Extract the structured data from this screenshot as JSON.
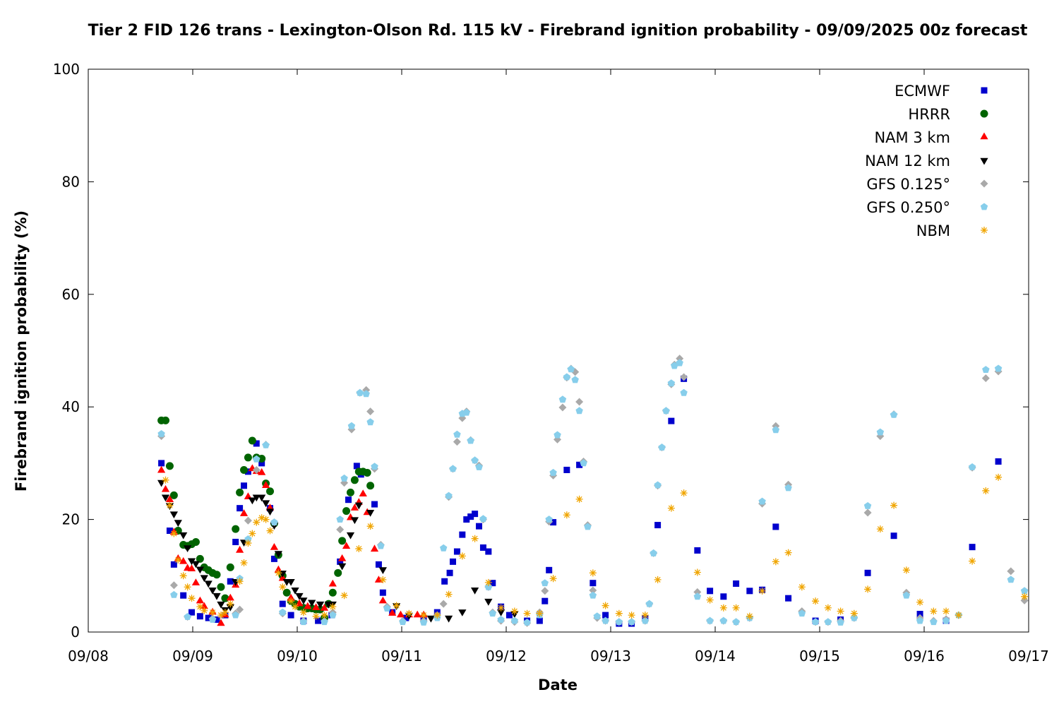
{
  "chart_data": {
    "type": "scatter",
    "title": "Tier 2 FID 126 trans - Lexington-Olson Rd. 115 kV - Firebrand ignition probability - 09/09/2025 00z forecast",
    "x_label": "Date",
    "y_label": "Firebrand ignition probability (%)",
    "xlim": [
      0,
      9
    ],
    "xticks": [
      {
        "value": 0,
        "label": "09/08"
      },
      {
        "value": 1,
        "label": "09/09"
      },
      {
        "value": 2,
        "label": "09/10"
      },
      {
        "value": 3,
        "label": "09/11"
      },
      {
        "value": 4,
        "label": "09/12"
      },
      {
        "value": 5,
        "label": "09/13"
      },
      {
        "value": 6,
        "label": "09/14"
      },
      {
        "value": 7,
        "label": "09/15"
      },
      {
        "value": 8,
        "label": "09/16"
      },
      {
        "value": 9,
        "label": "09/17"
      }
    ],
    "ylim": [
      0,
      100
    ],
    "yticks": [
      0,
      20,
      40,
      60,
      80,
      100
    ],
    "grid": false,
    "legend": "upper right",
    "series": [
      {
        "name": "ECMWF",
        "color": "#0000cd",
        "marker": "square",
        "x": [
          0.7,
          0.78,
          0.82,
          0.91,
          0.99,
          1.07,
          1.15,
          1.23,
          1.31,
          1.36,
          1.41,
          1.45,
          1.49,
          1.53,
          1.61,
          1.66,
          1.74,
          1.78,
          1.86,
          1.94,
          2.06,
          2.2,
          2.33,
          2.41,
          2.49,
          2.57,
          2.61,
          2.74,
          2.78,
          2.82,
          2.91,
          3.04,
          3.21,
          3.34,
          3.41,
          3.46,
          3.49,
          3.53,
          3.58,
          3.62,
          3.66,
          3.7,
          3.74,
          3.78,
          3.83,
          3.87,
          3.95,
          4.03,
          4.2,
          4.32,
          4.37,
          4.41,
          4.45,
          4.58,
          4.7,
          4.83,
          4.95,
          5.08,
          5.2,
          5.33,
          5.45,
          5.58,
          5.7,
          5.83,
          5.95,
          6.08,
          6.2,
          6.33,
          6.45,
          6.58,
          6.7,
          6.96,
          7.2,
          7.46,
          7.71,
          7.96,
          8.21,
          8.46,
          8.71
        ],
        "values": [
          30,
          18,
          12,
          6.5,
          3.5,
          2.8,
          2.5,
          2.2,
          3,
          9,
          16,
          22,
          26,
          28.5,
          33.5,
          30,
          22,
          13,
          5,
          3,
          2,
          2,
          3,
          12.5,
          23.5,
          29.5,
          28,
          22.7,
          12,
          7,
          3.5,
          2.5,
          2.5,
          3.5,
          9,
          10.5,
          12.5,
          14.3,
          17.3,
          20,
          20.5,
          21,
          18.8,
          15,
          14.3,
          8.7,
          4.5,
          3,
          2,
          2,
          5.5,
          11,
          19.5,
          28.8,
          29.7,
          8.7,
          3,
          1.5,
          1.5,
          2.5,
          19,
          37.5,
          45,
          14.5,
          7.3,
          6.3,
          8.6,
          7.3,
          7.5,
          18.7,
          6,
          2,
          2.2,
          10.5,
          17.1,
          3.2,
          2,
          15.1,
          30.3
        ]
      },
      {
        "name": "HRRR",
        "color": "#006400",
        "marker": "circle",
        "x": [
          0.7,
          0.74,
          0.78,
          0.82,
          0.86,
          0.91,
          0.95,
          0.99,
          1.03,
          1.07,
          1.11,
          1.15,
          1.19,
          1.23,
          1.27,
          1.31,
          1.36,
          1.41,
          1.45,
          1.49,
          1.53,
          1.57,
          1.61,
          1.66,
          1.7,
          1.74,
          1.78,
          1.82,
          1.86,
          1.9,
          1.94,
          1.98,
          2.02,
          2.06,
          2.1,
          2.14,
          2.18,
          2.22,
          2.26,
          2.3,
          2.34,
          2.39,
          2.43,
          2.47,
          2.51,
          2.55,
          2.59,
          2.63,
          2.67,
          2.7
        ],
        "values": [
          37.6,
          37.6,
          29.5,
          24.3,
          18,
          15.5,
          15.3,
          15.6,
          16,
          13,
          11.5,
          11,
          10.5,
          10.2,
          8,
          6,
          11.5,
          18.3,
          24.8,
          28.8,
          31,
          34,
          31,
          30.8,
          26.4,
          25,
          19.3,
          13.7,
          10,
          7,
          5.5,
          5,
          4.5,
          4.3,
          4.2,
          4.2,
          4,
          4,
          2.5,
          5,
          7,
          10.5,
          16.2,
          21.5,
          24.8,
          27,
          28.5,
          28.5,
          28.3,
          26
        ]
      },
      {
        "name": "NAM 3 km",
        "color": "#ff0000",
        "marker": "triangle-up",
        "x": [
          0.7,
          0.74,
          0.78,
          0.82,
          0.86,
          0.91,
          0.95,
          0.99,
          1.03,
          1.07,
          1.11,
          1.19,
          1.27,
          1.31,
          1.36,
          1.41,
          1.45,
          1.49,
          1.53,
          1.57,
          1.61,
          1.66,
          1.7,
          1.74,
          1.78,
          1.82,
          1.86,
          1.94,
          2.02,
          2.1,
          2.18,
          2.26,
          2.34,
          2.43,
          2.47,
          2.51,
          2.55,
          2.59,
          2.63,
          2.67,
          2.74,
          2.78,
          2.82,
          2.91,
          2.99,
          3.07,
          3.15,
          3.21
        ],
        "values": [
          28.7,
          25.3,
          23.5,
          17.7,
          13,
          12.5,
          11.3,
          11.2,
          8.7,
          5.5,
          4.5,
          3.5,
          1.5,
          3,
          6,
          8.3,
          14.5,
          21,
          24,
          29,
          28.5,
          28.3,
          26,
          22,
          15,
          11,
          9.5,
          6,
          5,
          4.5,
          4.3,
          4.2,
          8.5,
          13,
          15.2,
          20.3,
          22,
          23,
          24.5,
          21.2,
          14.7,
          9.2,
          5.5,
          3.3,
          3,
          3,
          3,
          3
        ]
      },
      {
        "name": "NAM 12 km",
        "color": "#000000",
        "marker": "triangle-down",
        "x": [
          0.7,
          0.74,
          0.78,
          0.82,
          0.86,
          0.91,
          0.95,
          0.99,
          1.03,
          1.07,
          1.11,
          1.15,
          1.19,
          1.23,
          1.27,
          1.31,
          1.36,
          1.41,
          1.49,
          1.57,
          1.61,
          1.66,
          1.7,
          1.74,
          1.78,
          1.82,
          1.86,
          1.9,
          1.94,
          1.98,
          2.02,
          2.06,
          2.14,
          2.22,
          2.3,
          2.34,
          2.43,
          2.51,
          2.55,
          2.59,
          2.7,
          2.82,
          2.95,
          3.07,
          3.28,
          3.45,
          3.58,
          3.7,
          3.83,
          3.95,
          4.08
        ],
        "values": [
          26.6,
          24,
          22.5,
          21,
          19.5,
          17.3,
          15,
          12.7,
          12.2,
          11.2,
          9.7,
          8.7,
          7.5,
          6.5,
          5,
          4,
          4.5,
          9,
          16,
          23.5,
          24,
          24,
          23,
          21.5,
          19,
          14,
          10.5,
          9,
          9,
          7.5,
          6.5,
          5.7,
          5.3,
          5,
          5,
          5,
          11.8,
          17.3,
          20,
          22.6,
          21.3,
          11.1,
          4.7,
          3,
          2.5,
          2.5,
          3.6,
          7.5,
          5.5,
          3.6,
          3.3
        ]
      },
      {
        "name": "GFS 0.125°",
        "color": "#a9a9a9",
        "marker": "diamond",
        "x": [
          0.7,
          0.82,
          0.95,
          1.19,
          1.41,
          1.45,
          1.53,
          1.61,
          1.7,
          1.78,
          1.86,
          2.06,
          2.26,
          2.34,
          2.41,
          2.45,
          2.52,
          2.6,
          2.66,
          2.7,
          2.74,
          2.8,
          2.86,
          3.01,
          3.21,
          3.34,
          3.4,
          3.45,
          3.49,
          3.53,
          3.58,
          3.62,
          3.66,
          3.7,
          3.74,
          3.78,
          3.83,
          3.87,
          3.95,
          4.08,
          4.2,
          4.32,
          4.37,
          4.41,
          4.45,
          4.49,
          4.54,
          4.58,
          4.62,
          4.66,
          4.7,
          4.74,
          4.78,
          4.83,
          4.87,
          4.95,
          5.08,
          5.2,
          5.33,
          5.37,
          5.41,
          5.45,
          5.49,
          5.53,
          5.58,
          5.61,
          5.66,
          5.7,
          5.83,
          5.95,
          6.08,
          6.2,
          6.33,
          6.45,
          6.58,
          6.7,
          6.83,
          6.96,
          7.08,
          7.2,
          7.33,
          7.46,
          7.58,
          7.71,
          7.83,
          7.96,
          8.09,
          8.21,
          8.33,
          8.46,
          8.59,
          8.71,
          8.83,
          8.96
        ],
        "values": [
          34.8,
          8.3,
          2.7,
          2.4,
          3.3,
          4,
          19.8,
          28.8,
          33.3,
          19.5,
          3.3,
          2,
          2,
          3.5,
          18.2,
          26.5,
          36,
          42.5,
          43,
          39.2,
          29,
          15.5,
          4.5,
          2,
          2,
          3,
          5,
          24,
          29,
          33.8,
          38,
          39.2,
          34.1,
          30.5,
          29.6,
          20,
          8,
          3.5,
          2,
          1.8,
          1.6,
          3.5,
          7.3,
          19.6,
          27.8,
          34.2,
          39.9,
          45.2,
          46.8,
          46.2,
          40.9,
          30.3,
          19,
          7.4,
          2.5,
          2,
          1.8,
          1.8,
          2,
          5,
          14,
          26,
          32.8,
          39.3,
          44,
          47.5,
          48.6,
          45.3,
          7.1,
          2,
          2,
          1.8,
          2.5,
          22.8,
          36.6,
          26.2,
          3.7,
          1.8,
          1.8,
          2,
          2.5,
          21.2,
          34.8,
          38.7,
          7,
          2.5,
          2,
          2.3,
          3,
          29.2,
          45.1,
          46.3,
          10.8,
          5.6
        ]
      },
      {
        "name": "GFS 0.250°",
        "color": "#87ceeb",
        "marker": "pentagon",
        "x": [
          0.7,
          0.82,
          0.95,
          1.19,
          1.41,
          1.45,
          1.53,
          1.61,
          1.7,
          1.78,
          1.86,
          2.06,
          2.26,
          2.34,
          2.41,
          2.45,
          2.52,
          2.6,
          2.66,
          2.7,
          2.74,
          2.8,
          2.86,
          3.01,
          3.21,
          3.34,
          3.4,
          3.45,
          3.49,
          3.53,
          3.58,
          3.62,
          3.66,
          3.7,
          3.74,
          3.78,
          3.83,
          3.87,
          3.95,
          4.08,
          4.2,
          4.32,
          4.37,
          4.41,
          4.45,
          4.49,
          4.54,
          4.58,
          4.62,
          4.66,
          4.7,
          4.74,
          4.78,
          4.83,
          4.87,
          4.95,
          5.08,
          5.2,
          5.33,
          5.37,
          5.41,
          5.45,
          5.49,
          5.53,
          5.58,
          5.61,
          5.66,
          5.7,
          5.83,
          5.95,
          6.08,
          6.2,
          6.33,
          6.45,
          6.58,
          6.7,
          6.83,
          6.96,
          7.08,
          7.2,
          7.33,
          7.46,
          7.58,
          7.71,
          7.83,
          7.96,
          8.09,
          8.21,
          8.33,
          8.46,
          8.59,
          8.71,
          8.83,
          8.96
        ],
        "values": [
          35.2,
          6.6,
          2.7,
          2.2,
          3,
          9.5,
          16.5,
          30.7,
          33.2,
          19.5,
          3.5,
          1.8,
          1.8,
          3,
          20,
          27.3,
          36.6,
          42.5,
          42.3,
          37.3,
          29.4,
          15.3,
          4.2,
          1.8,
          1.7,
          2.5,
          14.9,
          24.2,
          29,
          35.1,
          38.8,
          39,
          34,
          30.5,
          29.3,
          20.1,
          8,
          3.3,
          2.2,
          2,
          1.7,
          3,
          8.7,
          20,
          28.3,
          35,
          41.3,
          45.3,
          46.7,
          44.8,
          39.3,
          30,
          18.7,
          6.5,
          2.8,
          2,
          1.8,
          1.8,
          2,
          5,
          14,
          26.1,
          32.8,
          39.3,
          44.2,
          47.3,
          47.8,
          42.5,
          6.3,
          2,
          2,
          1.8,
          2.5,
          23.2,
          35.9,
          25.6,
          3.3,
          1.8,
          1.8,
          1.7,
          2.5,
          22.4,
          35.5,
          38.6,
          6.5,
          2,
          1.8,
          2,
          3,
          29.3,
          46.6,
          46.8,
          9.3,
          7.3
        ]
      },
      {
        "name": "NBM",
        "color": "#f0a500",
        "marker": "asterisk",
        "x": [
          0.74,
          0.78,
          0.82,
          0.86,
          0.91,
          0.95,
          0.99,
          1.07,
          1.11,
          1.19,
          1.27,
          1.31,
          1.36,
          1.45,
          1.49,
          1.53,
          1.57,
          1.61,
          1.66,
          1.7,
          1.74,
          1.82,
          1.86,
          1.94,
          1.98,
          2.06,
          2.18,
          2.26,
          2.34,
          2.45,
          2.59,
          2.7,
          2.82,
          2.95,
          3.07,
          3.21,
          3.34,
          3.45,
          3.58,
          3.7,
          3.83,
          3.95,
          4.08,
          4.2,
          4.32,
          4.45,
          4.58,
          4.7,
          4.83,
          4.95,
          5.08,
          5.2,
          5.33,
          5.45,
          5.58,
          5.7,
          5.83,
          5.95,
          6.08,
          6.2,
          6.33,
          6.45,
          6.58,
          6.7,
          6.83,
          6.96,
          7.08,
          7.2,
          7.33,
          7.46,
          7.58,
          7.71,
          7.83,
          7.96,
          8.09,
          8.21,
          8.33,
          8.46,
          8.59,
          8.71,
          8.96
        ],
        "values": [
          27,
          22.5,
          17.5,
          12.8,
          10,
          8,
          6,
          4.5,
          3.8,
          3.5,
          3,
          3.5,
          5,
          9,
          12.3,
          15.8,
          17.5,
          19.5,
          20.3,
          20,
          18,
          10.5,
          8,
          5.5,
          4.5,
          3.5,
          2.8,
          3,
          4.5,
          6.5,
          14.8,
          18.8,
          9.3,
          4.7,
          3.3,
          3,
          3,
          6.7,
          13.5,
          16.6,
          8.8,
          4.3,
          3.7,
          3.3,
          3.3,
          9.5,
          20.8,
          23.6,
          10.5,
          4.7,
          3.3,
          3,
          3,
          9.3,
          22,
          24.7,
          10.6,
          5.7,
          4.3,
          4.3,
          2.8,
          7.3,
          12.5,
          14.1,
          8,
          5.5,
          4.3,
          3.7,
          3.3,
          7.6,
          18.3,
          22.5,
          11,
          5.3,
          3.7,
          3.7,
          3,
          12.6,
          25.1,
          27.5,
          6.3
        ]
      }
    ]
  }
}
